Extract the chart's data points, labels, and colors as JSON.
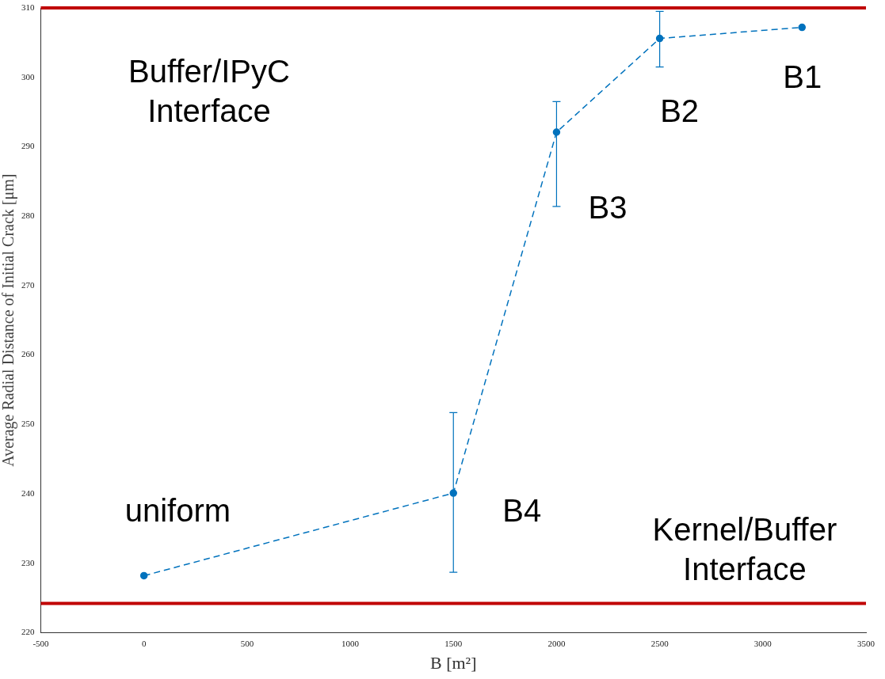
{
  "chart_data": {
    "type": "line",
    "xlabel": "B [m²]",
    "ylabel": "Average Radial Distance of Initial Crack [μm]",
    "x": [
      0,
      1500,
      2000,
      2500,
      3190
    ],
    "series": [
      {
        "color": "#0072bd",
        "values": [
          228.2,
          240.1,
          292.1,
          305.6,
          307.2
        ],
        "errors": [
          null,
          [
            228.7,
            251.7
          ],
          [
            281.4,
            296.5
          ],
          [
            301.5,
            309.5
          ],
          null
        ]
      }
    ],
    "xlim": [
      -500,
      3500
    ],
    "xticks": [
      -500,
      0,
      500,
      1000,
      1500,
      2000,
      2500,
      3000,
      3500
    ],
    "ylim": [
      220,
      310
    ],
    "yticks": [
      220,
      230,
      240,
      250,
      260,
      270,
      280,
      290,
      300,
      310
    ],
    "grid": false,
    "legend": false,
    "marker": "circle",
    "line_style": "dashed",
    "ref_lines": [
      {
        "axis": "y",
        "value": 310,
        "color": "#c00000"
      },
      {
        "axis": "y",
        "value": 224.2,
        "color": "#c00000"
      }
    ],
    "annotations": [
      "Buffer/IPyC\nInterface",
      "B1",
      "B2",
      "B3",
      "B4",
      "uniform",
      "Kernel/Buffer\nInterface"
    ]
  }
}
